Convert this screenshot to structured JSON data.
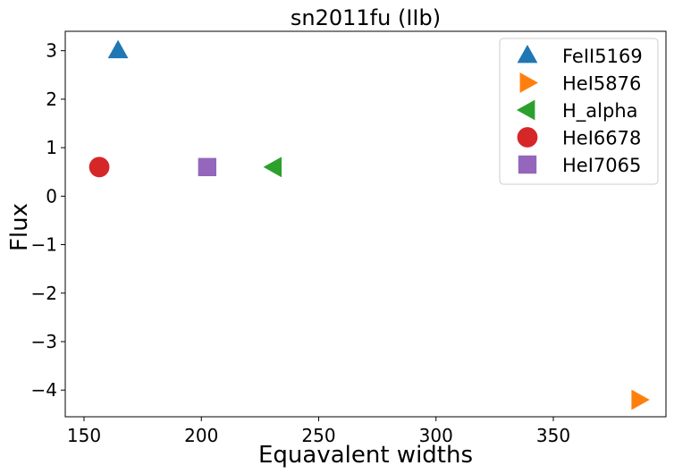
{
  "chart_data": {
    "type": "scatter",
    "title": "sn2011fu (IIb)",
    "xlabel": "Equavalent widths",
    "ylabel": "Flux",
    "xlim": [
      142,
      398
    ],
    "ylim": [
      -4.55,
      3.4
    ],
    "x_ticks": [
      150,
      200,
      250,
      300,
      350
    ],
    "y_ticks": [
      -4,
      -3,
      -2,
      -1,
      0,
      1,
      2,
      3
    ],
    "x_tick_labels": [
      "150",
      "200",
      "250",
      "300",
      "350"
    ],
    "y_tick_labels": [
      "−4",
      "−3",
      "−2",
      "−1",
      "0",
      "1",
      "2",
      "3"
    ],
    "grid": false,
    "legend_position": "top-right",
    "series": [
      {
        "name": "FeII5169",
        "marker": "triangle-up",
        "color": "#1f77b4",
        "points": [
          {
            "x": 164.5,
            "y": 3.0
          }
        ]
      },
      {
        "name": "HeI5876",
        "marker": "triangle-right",
        "color": "#ff7f0e",
        "points": [
          {
            "x": 386.5,
            "y": -4.2
          }
        ]
      },
      {
        "name": "H_alpha",
        "marker": "triangle-left",
        "color": "#2ca02c",
        "points": [
          {
            "x": 231.0,
            "y": 0.6
          }
        ]
      },
      {
        "name": "HeI6678",
        "marker": "circle",
        "color": "#d62728",
        "points": [
          {
            "x": 156.5,
            "y": 0.6
          }
        ]
      },
      {
        "name": "HeI7065",
        "marker": "square",
        "color": "#9467bd",
        "points": [
          {
            "x": 202.5,
            "y": 0.6
          }
        ]
      }
    ]
  }
}
